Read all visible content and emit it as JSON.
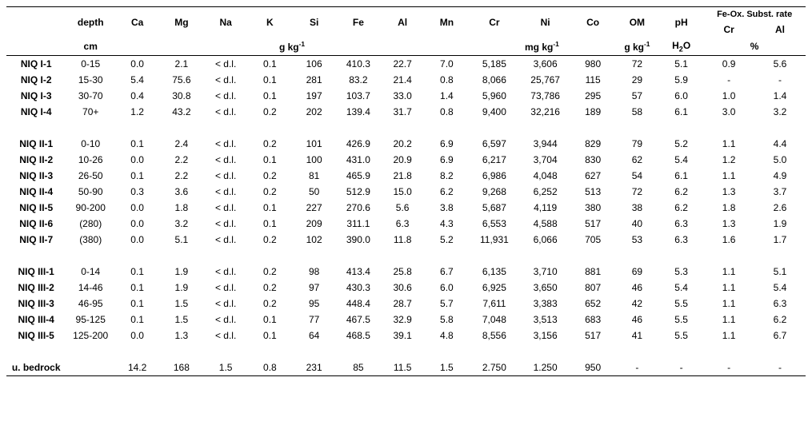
{
  "header": {
    "row1": {
      "depth": "depth",
      "Ca": "Ca",
      "Mg": "Mg",
      "Na": "Na",
      "K": "K",
      "Si": "Si",
      "Fe": "Fe",
      "Al": "Al",
      "Mn": "Mn",
      "Cr": "Cr",
      "Ni": "Ni",
      "Co": "Co",
      "OM": "OM",
      "pH": "pH",
      "feox": "Fe-Ox. Subst. rate",
      "feox_cr": "Cr",
      "feox_al": "Al"
    },
    "row2": {
      "depth_unit": "cm",
      "gkg": "g kg",
      "mgkg": "mg kg",
      "om_unit": "g kg",
      "h2o": "H₂O",
      "pct": "%"
    }
  },
  "rows": [
    {
      "label": "NIQ I-1",
      "depth": "0-15",
      "Ca": "0.0",
      "Mg": "2.1",
      "Na": "< d.l.",
      "K": "0.1",
      "Si": "106",
      "Fe": "410.3",
      "Al": "22.7",
      "Mn": "7.0",
      "Cr": "5,185",
      "Ni": "3,606",
      "Co": "980",
      "OM": "72",
      "pH": "5.1",
      "feCr": "0.9",
      "feAl": "5.6"
    },
    {
      "label": "NIQ I-2",
      "depth": "15-30",
      "Ca": "5.4",
      "Mg": "75.6",
      "Na": "< d.l.",
      "K": "0.1",
      "Si": "281",
      "Fe": "83.2",
      "Al": "21.4",
      "Mn": "0.8",
      "Cr": "8,066",
      "Ni": "25,767",
      "Co": "115",
      "OM": "29",
      "pH": "5.9",
      "feCr": "-",
      "feAl": "-"
    },
    {
      "label": "NIQ I-3",
      "depth": "30-70",
      "Ca": "0.4",
      "Mg": "30.8",
      "Na": "< d.l.",
      "K": "0.1",
      "Si": "197",
      "Fe": "103.7",
      "Al": "33.0",
      "Mn": "1.4",
      "Cr": "5,960",
      "Ni": "73,786",
      "Co": "295",
      "OM": "57",
      "pH": "6.0",
      "feCr": "1.0",
      "feAl": "1.4"
    },
    {
      "label": "NIQ I-4",
      "depth": "70+",
      "Ca": "1.2",
      "Mg": "43.2",
      "Na": "< d.l.",
      "K": "0.2",
      "Si": "202",
      "Fe": "139.4",
      "Al": "31.7",
      "Mn": "0.8",
      "Cr": "9,400",
      "Ni": "32,216",
      "Co": "189",
      "OM": "58",
      "pH": "6.1",
      "feCr": "3.0",
      "feAl": "3.2"
    },
    {
      "spacer": true
    },
    {
      "label": "NIQ II-1",
      "depth": "0-10",
      "Ca": "0.1",
      "Mg": "2.4",
      "Na": "< d.l.",
      "K": "0.2",
      "Si": "101",
      "Fe": "426.9",
      "Al": "20.2",
      "Mn": "6.9",
      "Cr": "6,597",
      "Ni": "3,944",
      "Co": "829",
      "OM": "79",
      "pH": "5.2",
      "feCr": "1.1",
      "feAl": "4.4"
    },
    {
      "label": "NIQ II-2",
      "depth": "10-26",
      "Ca": "0.0",
      "Mg": "2.2",
      "Na": "< d.l.",
      "K": "0.1",
      "Si": "100",
      "Fe": "431.0",
      "Al": "20.9",
      "Mn": "6.9",
      "Cr": "6,217",
      "Ni": "3,704",
      "Co": "830",
      "OM": "62",
      "pH": "5.4",
      "feCr": "1.2",
      "feAl": "5.0"
    },
    {
      "label": "NIQ II-3",
      "depth": "26-50",
      "Ca": "0.1",
      "Mg": "2.2",
      "Na": "< d.l.",
      "K": "0.2",
      "Si": "81",
      "Fe": "465.9",
      "Al": "21.8",
      "Mn": "8.2",
      "Cr": "6,986",
      "Ni": "4,048",
      "Co": "627",
      "OM": "54",
      "pH": "6.1",
      "feCr": "1.1",
      "feAl": "4.9"
    },
    {
      "label": "NIQ II-4",
      "depth": "50-90",
      "Ca": "0.3",
      "Mg": "3.6",
      "Na": "< d.l.",
      "K": "0.2",
      "Si": "50",
      "Fe": "512.9",
      "Al": "15.0",
      "Mn": "6.2",
      "Cr": "9,268",
      "Ni": "6,252",
      "Co": "513",
      "OM": "72",
      "pH": "6.2",
      "feCr": "1.3",
      "feAl": "3.7"
    },
    {
      "label": "NIQ II-5",
      "depth": "90-200",
      "Ca": "0.0",
      "Mg": "1.8",
      "Na": "< d.l.",
      "K": "0.1",
      "Si": "227",
      "Fe": "270.6",
      "Al": "5.6",
      "Mn": "3.8",
      "Cr": "5,687",
      "Ni": "4,119",
      "Co": "380",
      "OM": "38",
      "pH": "6.2",
      "feCr": "1.8",
      "feAl": "2.6"
    },
    {
      "label": "NIQ II-6",
      "depth": "(280)",
      "Ca": "0.0",
      "Mg": "3.2",
      "Na": "< d.l.",
      "K": "0.1",
      "Si": "209",
      "Fe": "311.1",
      "Al": "6.3",
      "Mn": "4.3",
      "Cr": "6,553",
      "Ni": "4,588",
      "Co": "517",
      "OM": "40",
      "pH": "6.3",
      "feCr": "1.3",
      "feAl": "1.9"
    },
    {
      "label": "NIQ II-7",
      "depth": "(380)",
      "Ca": "0.0",
      "Mg": "5.1",
      "Na": "< d.l.",
      "K": "0.2",
      "Si": "102",
      "Fe": "390.0",
      "Al": "11.8",
      "Mn": "5.2",
      "Cr": "11,931",
      "Ni": "6,066",
      "Co": "705",
      "OM": "53",
      "pH": "6.3",
      "feCr": "1.6",
      "feAl": "1.7"
    },
    {
      "spacer": true
    },
    {
      "label": "NIQ III-1",
      "depth": "0-14",
      "Ca": "0.1",
      "Mg": "1.9",
      "Na": "< d.l.",
      "K": "0.2",
      "Si": "98",
      "Fe": "413.4",
      "Al": "25.8",
      "Mn": "6.7",
      "Cr": "6,135",
      "Ni": "3,710",
      "Co": "881",
      "OM": "69",
      "pH": "5.3",
      "feCr": "1.1",
      "feAl": "5.1"
    },
    {
      "label": "NIQ III-2",
      "depth": "14-46",
      "Ca": "0.1",
      "Mg": "1.9",
      "Na": "< d.l.",
      "K": "0.2",
      "Si": "97",
      "Fe": "430.3",
      "Al": "30.6",
      "Mn": "6.0",
      "Cr": "6,925",
      "Ni": "3,650",
      "Co": "807",
      "OM": "46",
      "pH": "5.4",
      "feCr": "1.1",
      "feAl": "5.4"
    },
    {
      "label": "NIQ III-3",
      "depth": "46-95",
      "Ca": "0.1",
      "Mg": "1.5",
      "Na": "< d.l.",
      "K": "0.2",
      "Si": "95",
      "Fe": "448.4",
      "Al": "28.7",
      "Mn": "5.7",
      "Cr": "7,611",
      "Ni": "3,383",
      "Co": "652",
      "OM": "42",
      "pH": "5.5",
      "feCr": "1.1",
      "feAl": "6.3"
    },
    {
      "label": "NIQ III-4",
      "depth": "95-125",
      "Ca": "0.1",
      "Mg": "1.5",
      "Na": "< d.l.",
      "K": "0.1",
      "Si": "77",
      "Fe": "467.5",
      "Al": "32.9",
      "Mn": "5.8",
      "Cr": "7,048",
      "Ni": "3,513",
      "Co": "683",
      "OM": "46",
      "pH": "5.5",
      "feCr": "1.1",
      "feAl": "6.2"
    },
    {
      "label": "NIQ III-5",
      "depth": "125-200",
      "Ca": "0.0",
      "Mg": "1.3",
      "Na": "< d.l.",
      "K": "0.1",
      "Si": "64",
      "Fe": "468.5",
      "Al": "39.1",
      "Mn": "4.8",
      "Cr": "8,556",
      "Ni": "3,156",
      "Co": "517",
      "OM": "41",
      "pH": "5.5",
      "feCr": "1.1",
      "feAl": "6.7"
    },
    {
      "spacer": true
    },
    {
      "label": "u. bedrock",
      "depth": "",
      "Ca": "14.2",
      "Mg": "168",
      "Na": "1.5",
      "K": "0.8",
      "Si": "231",
      "Fe": "85",
      "Al": "11.5",
      "Mn": "1.5",
      "Cr": "2.750",
      "Ni": "1.250",
      "Co": "950",
      "OM": "-",
      "pH": "-",
      "feCr": "-",
      "feAl": "-",
      "bottom": true
    }
  ]
}
